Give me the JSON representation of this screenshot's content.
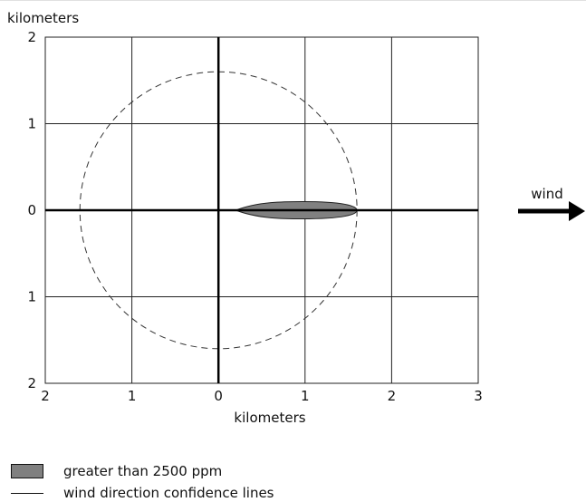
{
  "chart_data": {
    "type": "scatter",
    "title": "",
    "xlabel": "kilometers",
    "ylabel": "kilometers",
    "xlim": [
      -2,
      3
    ],
    "ylim": [
      -2,
      2
    ],
    "x_ticks": [
      -2,
      -1,
      0,
      1,
      2,
      3
    ],
    "x_tick_labels": [
      "2",
      "1",
      "0",
      "1",
      "2",
      "3"
    ],
    "y_ticks": [
      2,
      1,
      0,
      -1,
      -2
    ],
    "y_tick_labels": [
      "2",
      "1",
      "0",
      "1",
      "2"
    ],
    "grid": true,
    "legend_placement": "bottom-left",
    "circle": {
      "center": [
        0,
        0
      ],
      "radius": 1.6,
      "style": "dashed"
    },
    "plume": {
      "x_start": 0.2,
      "x_end": 1.6,
      "center_y": 0,
      "half_width": 0.1,
      "color": "#808080"
    },
    "wind_label": "wind",
    "legend": [
      {
        "label": "greater than 2500 ppm",
        "kind": "swatch",
        "color": "#808080"
      },
      {
        "label": "wind direction confidence lines",
        "kind": "line"
      }
    ]
  }
}
